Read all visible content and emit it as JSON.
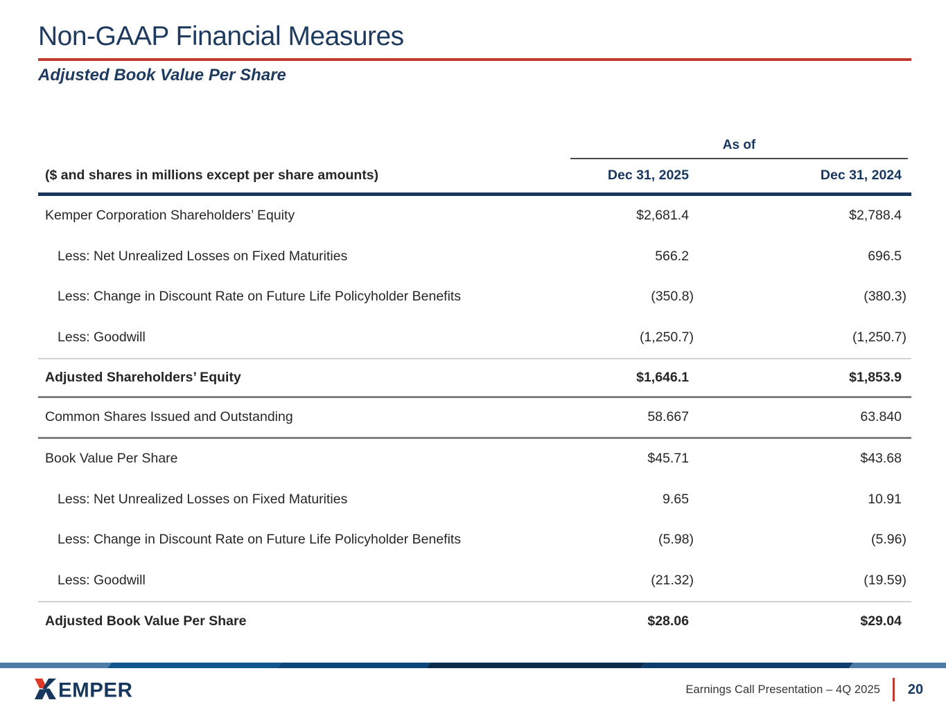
{
  "slide": {
    "title": "Non-GAAP Financial Measures",
    "subtitle": "Adjusted Book Value Per Share"
  },
  "table": {
    "as_of_label": "As of",
    "caption": "($ and shares in millions except per share amounts)",
    "columns": [
      "Dec 31, 2025",
      "Dec 31, 2024"
    ],
    "rows": [
      {
        "label": "Kemper Corporation Shareholders’ Equity",
        "indent": false,
        "bold": false,
        "values": [
          "$2,681.4",
          "$2,788.4"
        ]
      },
      {
        "label": "Less: Net Unrealized Losses on Fixed Maturities",
        "indent": true,
        "bold": false,
        "values": [
          "566.2",
          "696.5"
        ]
      },
      {
        "label": "Less: Change in Discount Rate on Future Life Policyholder Benefits",
        "indent": true,
        "bold": false,
        "values": [
          "(350.8)",
          "(380.3)"
        ]
      },
      {
        "label": "Less: Goodwill",
        "indent": true,
        "bold": false,
        "values": [
          "(1,250.7)",
          "(1,250.7)"
        ]
      },
      {
        "label": "Adjusted Shareholders’ Equity",
        "indent": false,
        "bold": true,
        "values": [
          "$1,646.1",
          "$1,853.9"
        ],
        "rule_above": "light",
        "rule_below": "dark"
      },
      {
        "label": "Common Shares Issued and Outstanding",
        "indent": false,
        "bold": false,
        "values": [
          "58.667",
          "63.840"
        ],
        "rule_below": "dark"
      },
      {
        "label": "Book Value Per Share",
        "indent": false,
        "bold": false,
        "values": [
          "$45.71",
          "$43.68"
        ]
      },
      {
        "label": "Less: Net Unrealized Losses on Fixed Maturities",
        "indent": true,
        "bold": false,
        "values": [
          "9.65",
          "10.91"
        ]
      },
      {
        "label": "Less: Change in Discount Rate on Future Life Policyholder Benefits",
        "indent": true,
        "bold": false,
        "values": [
          "(5.98)",
          "(5.96)"
        ]
      },
      {
        "label": "Less: Goodwill",
        "indent": true,
        "bold": false,
        "values": [
          "(21.32)",
          "(19.59)"
        ]
      },
      {
        "label": "Adjusted Book Value Per Share",
        "indent": false,
        "bold": true,
        "values": [
          "$28.06",
          "$29.04"
        ],
        "rule_above": "light"
      }
    ]
  },
  "footer": {
    "logo_text": "KEMPER",
    "presentation_label": "Earnings Call Presentation – 4Q 2025",
    "page_number": "20",
    "bar_colors": [
      "#4E7CA7",
      "#10578F",
      "#0D4678",
      "#0C2B4D",
      "#0E3E6E",
      "#4E7CA7"
    ]
  },
  "colors": {
    "navy": "#17375E",
    "title_navy": "#1E3A5F",
    "text": "#262626",
    "accent_red": "#C13A30",
    "logo_red": "#DC3A27",
    "rule_dark_gray": "#7F7F7F",
    "rule_light_gray": "#D2D2D2"
  }
}
